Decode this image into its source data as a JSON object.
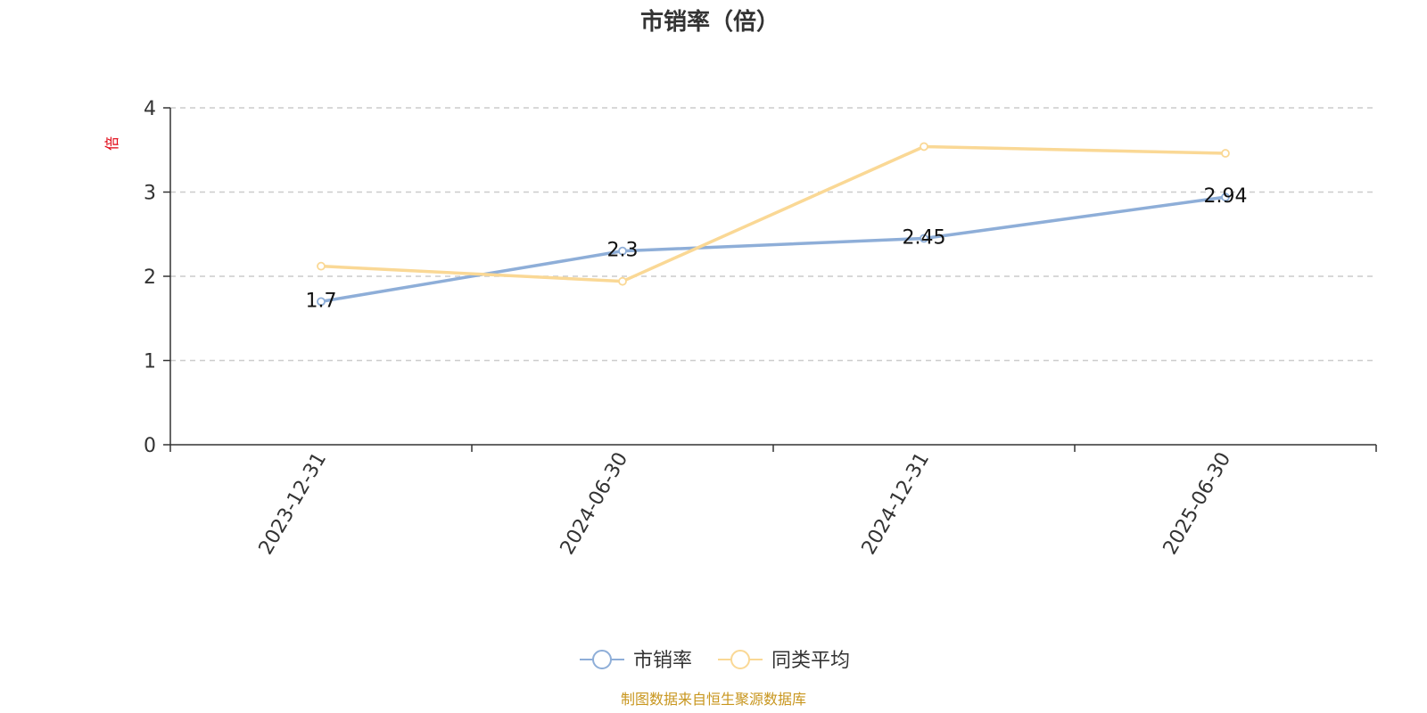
{
  "chart_data": {
    "type": "line",
    "title": "市销率（倍）",
    "ylabel": "倍",
    "xlabel": "",
    "categories": [
      "2023-12-31",
      "2024-06-30",
      "2024-12-31",
      "2025-06-30"
    ],
    "ylim": [
      0,
      4
    ],
    "yticks": [
      0,
      1,
      2,
      3,
      4
    ],
    "grid": true,
    "legend_position": "bottom-center",
    "series": [
      {
        "name": "市销率",
        "values": [
          1.7,
          2.3,
          2.45,
          2.94
        ],
        "data_labels": [
          "1.7",
          "2.3",
          "2.45",
          "2.94"
        ],
        "color": "#8eaed8"
      },
      {
        "name": "同类平均",
        "values": [
          2.12,
          1.94,
          3.54,
          3.46
        ],
        "color": "#fad895"
      }
    ]
  },
  "colors": {
    "ylabel": "#e0000f",
    "source": "#c8961e",
    "grid": "#cccccc",
    "axis": "#333333"
  },
  "source_text": "制图数据来自恒生聚源数据库"
}
